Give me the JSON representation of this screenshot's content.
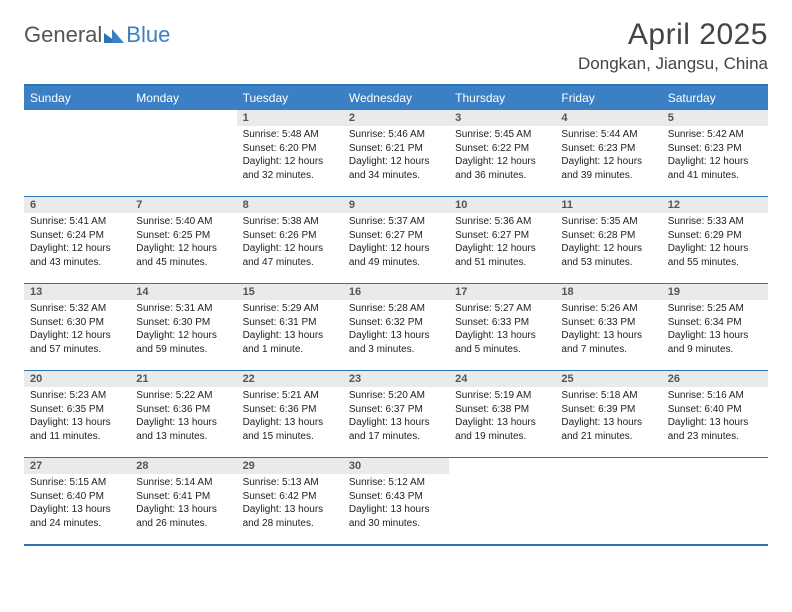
{
  "brand": {
    "part1": "General",
    "part2": "Blue"
  },
  "title": "April 2025",
  "location": "Dongkan, Jiangsu, China",
  "colors": {
    "header_bg": "#3b7fc4",
    "border": "#2e74b5",
    "daynum_bg": "#e9eaec",
    "text": "#222222",
    "brand_gray": "#555555",
    "brand_blue": "#3b7fc4"
  },
  "dayNames": [
    "Sunday",
    "Monday",
    "Tuesday",
    "Wednesday",
    "Thursday",
    "Friday",
    "Saturday"
  ],
  "weeks": [
    [
      null,
      null,
      {
        "n": "1",
        "sr": "5:48 AM",
        "ss": "6:20 PM",
        "dl": "12 hours and 32 minutes."
      },
      {
        "n": "2",
        "sr": "5:46 AM",
        "ss": "6:21 PM",
        "dl": "12 hours and 34 minutes."
      },
      {
        "n": "3",
        "sr": "5:45 AM",
        "ss": "6:22 PM",
        "dl": "12 hours and 36 minutes."
      },
      {
        "n": "4",
        "sr": "5:44 AM",
        "ss": "6:23 PM",
        "dl": "12 hours and 39 minutes."
      },
      {
        "n": "5",
        "sr": "5:42 AM",
        "ss": "6:23 PM",
        "dl": "12 hours and 41 minutes."
      }
    ],
    [
      {
        "n": "6",
        "sr": "5:41 AM",
        "ss": "6:24 PM",
        "dl": "12 hours and 43 minutes."
      },
      {
        "n": "7",
        "sr": "5:40 AM",
        "ss": "6:25 PM",
        "dl": "12 hours and 45 minutes."
      },
      {
        "n": "8",
        "sr": "5:38 AM",
        "ss": "6:26 PM",
        "dl": "12 hours and 47 minutes."
      },
      {
        "n": "9",
        "sr": "5:37 AM",
        "ss": "6:27 PM",
        "dl": "12 hours and 49 minutes."
      },
      {
        "n": "10",
        "sr": "5:36 AM",
        "ss": "6:27 PM",
        "dl": "12 hours and 51 minutes."
      },
      {
        "n": "11",
        "sr": "5:35 AM",
        "ss": "6:28 PM",
        "dl": "12 hours and 53 minutes."
      },
      {
        "n": "12",
        "sr": "5:33 AM",
        "ss": "6:29 PM",
        "dl": "12 hours and 55 minutes."
      }
    ],
    [
      {
        "n": "13",
        "sr": "5:32 AM",
        "ss": "6:30 PM",
        "dl": "12 hours and 57 minutes."
      },
      {
        "n": "14",
        "sr": "5:31 AM",
        "ss": "6:30 PM",
        "dl": "12 hours and 59 minutes."
      },
      {
        "n": "15",
        "sr": "5:29 AM",
        "ss": "6:31 PM",
        "dl": "13 hours and 1 minute."
      },
      {
        "n": "16",
        "sr": "5:28 AM",
        "ss": "6:32 PM",
        "dl": "13 hours and 3 minutes."
      },
      {
        "n": "17",
        "sr": "5:27 AM",
        "ss": "6:33 PM",
        "dl": "13 hours and 5 minutes."
      },
      {
        "n": "18",
        "sr": "5:26 AM",
        "ss": "6:33 PM",
        "dl": "13 hours and 7 minutes."
      },
      {
        "n": "19",
        "sr": "5:25 AM",
        "ss": "6:34 PM",
        "dl": "13 hours and 9 minutes."
      }
    ],
    [
      {
        "n": "20",
        "sr": "5:23 AM",
        "ss": "6:35 PM",
        "dl": "13 hours and 11 minutes."
      },
      {
        "n": "21",
        "sr": "5:22 AM",
        "ss": "6:36 PM",
        "dl": "13 hours and 13 minutes."
      },
      {
        "n": "22",
        "sr": "5:21 AM",
        "ss": "6:36 PM",
        "dl": "13 hours and 15 minutes."
      },
      {
        "n": "23",
        "sr": "5:20 AM",
        "ss": "6:37 PM",
        "dl": "13 hours and 17 minutes."
      },
      {
        "n": "24",
        "sr": "5:19 AM",
        "ss": "6:38 PM",
        "dl": "13 hours and 19 minutes."
      },
      {
        "n": "25",
        "sr": "5:18 AM",
        "ss": "6:39 PM",
        "dl": "13 hours and 21 minutes."
      },
      {
        "n": "26",
        "sr": "5:16 AM",
        "ss": "6:40 PM",
        "dl": "13 hours and 23 minutes."
      }
    ],
    [
      {
        "n": "27",
        "sr": "5:15 AM",
        "ss": "6:40 PM",
        "dl": "13 hours and 24 minutes."
      },
      {
        "n": "28",
        "sr": "5:14 AM",
        "ss": "6:41 PM",
        "dl": "13 hours and 26 minutes."
      },
      {
        "n": "29",
        "sr": "5:13 AM",
        "ss": "6:42 PM",
        "dl": "13 hours and 28 minutes."
      },
      {
        "n": "30",
        "sr": "5:12 AM",
        "ss": "6:43 PM",
        "dl": "13 hours and 30 minutes."
      },
      null,
      null,
      null
    ]
  ],
  "labels": {
    "sunrise": "Sunrise:",
    "sunset": "Sunset:",
    "daylight": "Daylight:"
  }
}
